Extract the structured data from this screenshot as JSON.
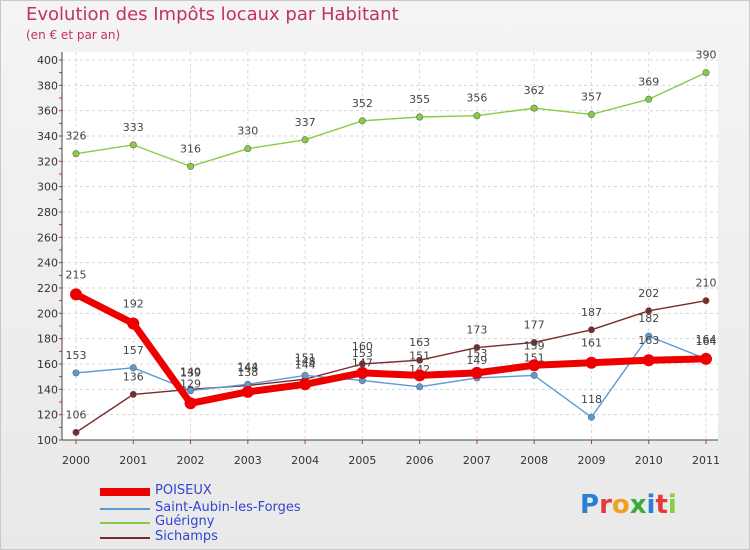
{
  "chart_data": {
    "type": "line",
    "title": "Evolution des Impôts locaux par Habitant",
    "subtitle": "(en € et par an)",
    "categories": [
      "2000",
      "2001",
      "2002",
      "2003",
      "2004",
      "2005",
      "2006",
      "2007",
      "2008",
      "2009",
      "2010",
      "2011"
    ],
    "ylim": [
      100,
      400
    ],
    "yticks": [
      100,
      120,
      140,
      160,
      180,
      200,
      220,
      240,
      260,
      280,
      300,
      320,
      340,
      360,
      380,
      400
    ],
    "series": [
      {
        "name": "POISEUX",
        "color": "#ee0000",
        "values": [
          215,
          192,
          129,
          138,
          144,
          153,
          151,
          153,
          159,
          161,
          163,
          164
        ]
      },
      {
        "name": "Saint-Aubin-les-Forges",
        "color": "#5b9bd5",
        "values": [
          153,
          157,
          139,
          144,
          151,
          147,
          142,
          149,
          151,
          118,
          182,
          164
        ]
      },
      {
        "name": "Guérigny",
        "color": "#88cc44",
        "values": [
          326,
          333,
          316,
          330,
          337,
          352,
          355,
          356,
          362,
          357,
          369,
          390
        ]
      },
      {
        "name": "Sichamps",
        "color": "#7a2a2a",
        "values": [
          106,
          136,
          140,
          143,
          148,
          160,
          163,
          173,
          177,
          187,
          202,
          210
        ]
      }
    ]
  },
  "logo": {
    "text": "Proxiti"
  }
}
